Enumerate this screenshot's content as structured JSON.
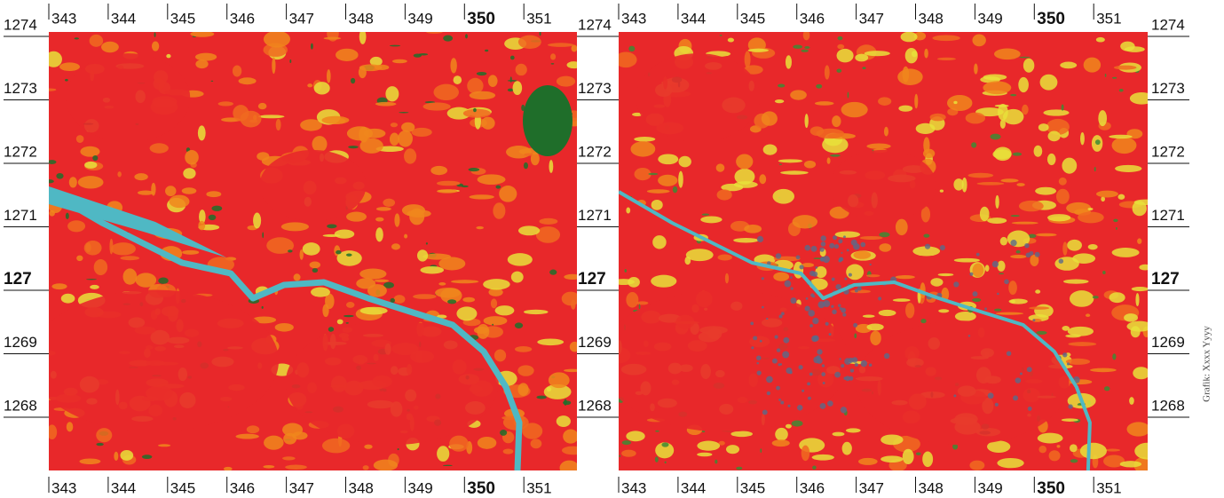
{
  "x_labels": [
    "343",
    "344",
    "345",
    "346",
    "347",
    "348",
    "349",
    "350",
    "351"
  ],
  "y_labels": [
    "1274",
    "1273",
    "1272",
    "1271",
    "127",
    "1269",
    "1268"
  ],
  "credit": "Grafik: Xxxx Yyyy"
}
